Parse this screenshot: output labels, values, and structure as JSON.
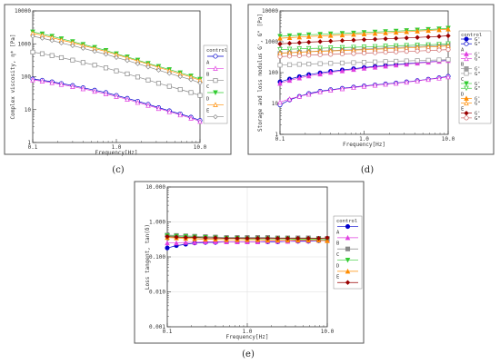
{
  "figure_labels": [
    "(c)",
    "(d)",
    "(e)"
  ],
  "chart_data": [
    {
      "id": "c",
      "type": "line",
      "xscale": "log",
      "yscale": "log",
      "xlim": [
        0.1,
        10
      ],
      "ylim": [
        1,
        10000
      ],
      "xticks": [
        0.1,
        1,
        10
      ],
      "xtick_labels": [
        "0.1",
        "1.0",
        "10.0"
      ],
      "yticks": [
        1,
        10,
        100,
        1000,
        10000
      ],
      "ytick_labels": [
        "1",
        "10",
        "100",
        "1000",
        "10000"
      ],
      "xlabel": "Frequency[Hz]",
      "ylabel": "Complex viscosity, η* [Pa]",
      "legend_position": "right",
      "legend": [
        "control",
        "A",
        "B",
        "C",
        "D",
        "E"
      ],
      "x": [
        0.1,
        0.13,
        0.17,
        0.22,
        0.3,
        0.4,
        0.55,
        0.75,
        1.0,
        1.35,
        1.8,
        2.4,
        3.2,
        4.3,
        5.8,
        7.8,
        10.0
      ],
      "series": [
        {
          "name": "control",
          "color": "#0000cc",
          "marker": "circle-open",
          "values": [
            85,
            78,
            70,
            62,
            54,
            46,
            39,
            33,
            27,
            22,
            18,
            14.5,
            11.5,
            9.2,
            7.4,
            5.9,
            4.7
          ]
        },
        {
          "name": "A",
          "color": "#e040e0",
          "marker": "triangle-open",
          "values": [
            80,
            73,
            66,
            58,
            50,
            43,
            36,
            30,
            25,
            20.5,
            16.5,
            13.5,
            10.8,
            8.6,
            6.9,
            5.5,
            4.4
          ]
        },
        {
          "name": "B",
          "color": "#888888",
          "marker": "square-open",
          "values": [
            560,
            500,
            440,
            380,
            320,
            270,
            225,
            185,
            150,
            122,
            98,
            79,
            63,
            51,
            41,
            33,
            27
          ]
        },
        {
          "name": "C",
          "color": "#33cc33",
          "marker": "triangle-down",
          "values": [
            2300,
            2000,
            1700,
            1420,
            1170,
            960,
            780,
            630,
            500,
            400,
            320,
            255,
            205,
            165,
            132,
            105,
            84
          ]
        },
        {
          "name": "D",
          "color": "#ff8c00",
          "marker": "triangle-open",
          "values": [
            2100,
            1820,
            1550,
            1300,
            1080,
            890,
            720,
            585,
            470,
            375,
            300,
            240,
            192,
            153,
            122,
            98,
            78
          ]
        },
        {
          "name": "E",
          "color": "#888888",
          "marker": "diamond-open",
          "values": [
            1700,
            1480,
            1260,
            1060,
            880,
            730,
            590,
            480,
            385,
            310,
            248,
            198,
            158,
            126,
            101,
            81,
            65
          ]
        }
      ]
    },
    {
      "id": "d",
      "type": "line",
      "xscale": "log",
      "yscale": "log",
      "xlim": [
        0.1,
        10
      ],
      "ylim": [
        1,
        10000
      ],
      "xticks": [
        0.1,
        1,
        10
      ],
      "xtick_labels": [
        "0.1",
        "1.0",
        "10.0"
      ],
      "yticks": [
        1,
        10,
        100,
        1000,
        10000
      ],
      "ytick_labels": [
        "1",
        "10",
        "100",
        "1000",
        "10000"
      ],
      "xlabel": "Frequency[Hz]",
      "ylabel": "Storage and loss modulus G', G\" [Pa]",
      "legend_position": "right",
      "legend": [
        {
          "group": "control",
          "items": [
            "G'",
            "G\""
          ]
        },
        {
          "group": "A",
          "items": [
            "G'",
            "G\""
          ]
        },
        {
          "group": "B",
          "items": [
            "G'",
            "G\""
          ]
        },
        {
          "group": "C",
          "items": [
            "G'",
            "G\""
          ]
        },
        {
          "group": "D",
          "items": [
            "G'",
            "G\""
          ]
        },
        {
          "group": "E",
          "items": [
            "G'",
            "G\""
          ]
        }
      ],
      "x": [
        0.1,
        0.13,
        0.17,
        0.22,
        0.3,
        0.4,
        0.55,
        0.75,
        1.0,
        1.35,
        1.8,
        2.4,
        3.2,
        4.3,
        5.8,
        7.8,
        10.0
      ],
      "series": [
        {
          "name": "control G'",
          "color": "#0000cc",
          "marker": "circle-filled",
          "values": [
            50,
            62,
            74,
            86,
            98,
            110,
            122,
            134,
            146,
            158,
            170,
            182,
            195,
            208,
            222,
            237,
            252
          ]
        },
        {
          "name": "control G\"",
          "color": "#0000cc",
          "marker": "circle-open",
          "values": [
            9,
            13,
            17,
            21,
            25,
            28,
            31,
            34,
            37,
            40,
            43,
            46,
            50,
            55,
            61,
            68,
            76
          ]
        },
        {
          "name": "A G'",
          "color": "#e040e0",
          "marker": "triangle-filled",
          "values": [
            45,
            56,
            67,
            78,
            90,
            102,
            114,
            126,
            138,
            150,
            162,
            175,
            188,
            202,
            216,
            231,
            246
          ]
        },
        {
          "name": "A G\"",
          "color": "#e040e0",
          "marker": "triangle-open",
          "values": [
            11,
            14,
            17,
            20,
            24,
            27,
            30,
            33,
            36,
            39,
            42,
            45,
            49,
            54,
            60,
            66,
            73
          ]
        },
        {
          "name": "B G'",
          "color": "#999999",
          "marker": "square-filled",
          "values": [
            420,
            440,
            460,
            480,
            500,
            520,
            540,
            560,
            580,
            600,
            625,
            650,
            675,
            700,
            730,
            760,
            790
          ]
        },
        {
          "name": "B G\"",
          "color": "#999999",
          "marker": "square-open",
          "values": [
            175,
            180,
            185,
            190,
            195,
            200,
            205,
            210,
            216,
            222,
            228,
            234,
            240,
            246,
            252,
            258,
            265
          ]
        },
        {
          "name": "C G'",
          "color": "#33cc33",
          "marker": "triangle-down",
          "values": [
            1500,
            1560,
            1620,
            1680,
            1740,
            1800,
            1860,
            1920,
            1990,
            2060,
            2130,
            2210,
            2300,
            2400,
            2500,
            2620,
            2750
          ]
        },
        {
          "name": "C G\"",
          "color": "#33cc33",
          "marker": "triangle-down-open",
          "values": [
            560,
            575,
            590,
            605,
            620,
            635,
            650,
            665,
            680,
            700,
            720,
            740,
            760,
            780,
            800,
            830,
            860
          ]
        },
        {
          "name": "D G'",
          "color": "#ff8c00",
          "marker": "triangle-filled",
          "values": [
            1300,
            1360,
            1420,
            1480,
            1540,
            1600,
            1660,
            1720,
            1790,
            1860,
            1940,
            2020,
            2110,
            2210,
            2320,
            2440,
            2560
          ]
        },
        {
          "name": "D G\"",
          "color": "#ff8c00",
          "marker": "triangle-open",
          "values": [
            430,
            445,
            460,
            475,
            490,
            505,
            520,
            535,
            552,
            570,
            590,
            610,
            632,
            655,
            680,
            706,
            735
          ]
        },
        {
          "name": "E G'",
          "color": "#990000",
          "marker": "diamond-filled",
          "values": [
            850,
            890,
            930,
            970,
            1010,
            1050,
            1090,
            1130,
            1170,
            1210,
            1250,
            1290,
            1330,
            1380,
            1430,
            1490,
            1560
          ]
        },
        {
          "name": "E G\"",
          "color": "#cc6666",
          "marker": "circle-open",
          "values": [
            330,
            342,
            354,
            366,
            378,
            390,
            402,
            414,
            426,
            440,
            455,
            470,
            486,
            502,
            520,
            540,
            560
          ]
        }
      ]
    },
    {
      "id": "e",
      "type": "line",
      "xscale": "log",
      "yscale": "log",
      "xlim": [
        0.1,
        10
      ],
      "ylim": [
        0.001,
        10
      ],
      "xticks": [
        0.1,
        1,
        10
      ],
      "xtick_labels": [
        "0.1",
        "1.0",
        "10.0"
      ],
      "yticks": [
        0.001,
        0.01,
        0.1,
        1,
        10
      ],
      "ytick_labels": [
        "0.001",
        "0.010",
        "0.100",
        "1.000",
        "10.000"
      ],
      "xlabel": "Frequency[Hz]",
      "ylabel": "Loss tangent, tan(δ)",
      "legend_position": "right",
      "legend": [
        "control",
        "A",
        "B",
        "C",
        "D",
        "E"
      ],
      "x": [
        0.1,
        0.13,
        0.17,
        0.22,
        0.3,
        0.4,
        0.55,
        0.75,
        1.0,
        1.35,
        1.8,
        2.4,
        3.2,
        4.3,
        5.8,
        7.8,
        10.0
      ],
      "series": [
        {
          "name": "control",
          "color": "#0000cc",
          "marker": "circle-filled",
          "values": [
            0.18,
            0.21,
            0.23,
            0.25,
            0.26,
            0.26,
            0.27,
            0.27,
            0.27,
            0.27,
            0.27,
            0.27,
            0.28,
            0.28,
            0.28,
            0.29,
            0.3
          ]
        },
        {
          "name": "A",
          "color": "#e040e0",
          "marker": "triangle-filled",
          "values": [
            0.25,
            0.25,
            0.26,
            0.26,
            0.27,
            0.27,
            0.27,
            0.27,
            0.27,
            0.27,
            0.28,
            0.28,
            0.28,
            0.29,
            0.29,
            0.3,
            0.3
          ]
        },
        {
          "name": "B",
          "color": "#888888",
          "marker": "square-filled",
          "values": [
            0.42,
            0.41,
            0.4,
            0.39,
            0.38,
            0.37,
            0.36,
            0.36,
            0.36,
            0.36,
            0.36,
            0.35,
            0.35,
            0.35,
            0.35,
            0.34,
            0.34
          ]
        },
        {
          "name": "C",
          "color": "#33cc33",
          "marker": "triangle-down",
          "values": [
            0.4,
            0.39,
            0.38,
            0.37,
            0.36,
            0.35,
            0.34,
            0.34,
            0.33,
            0.33,
            0.33,
            0.33,
            0.33,
            0.32,
            0.32,
            0.32,
            0.31
          ]
        },
        {
          "name": "D",
          "color": "#ff8c00",
          "marker": "triangle-filled",
          "values": [
            0.36,
            0.35,
            0.34,
            0.33,
            0.32,
            0.32,
            0.31,
            0.31,
            0.31,
            0.31,
            0.3,
            0.3,
            0.3,
            0.3,
            0.3,
            0.3,
            0.29
          ]
        },
        {
          "name": "E",
          "color": "#990000",
          "marker": "diamond-filled",
          "values": [
            0.38,
            0.37,
            0.36,
            0.36,
            0.35,
            0.35,
            0.34,
            0.34,
            0.34,
            0.34,
            0.34,
            0.34,
            0.34,
            0.34,
            0.34,
            0.34,
            0.35
          ]
        }
      ]
    }
  ]
}
